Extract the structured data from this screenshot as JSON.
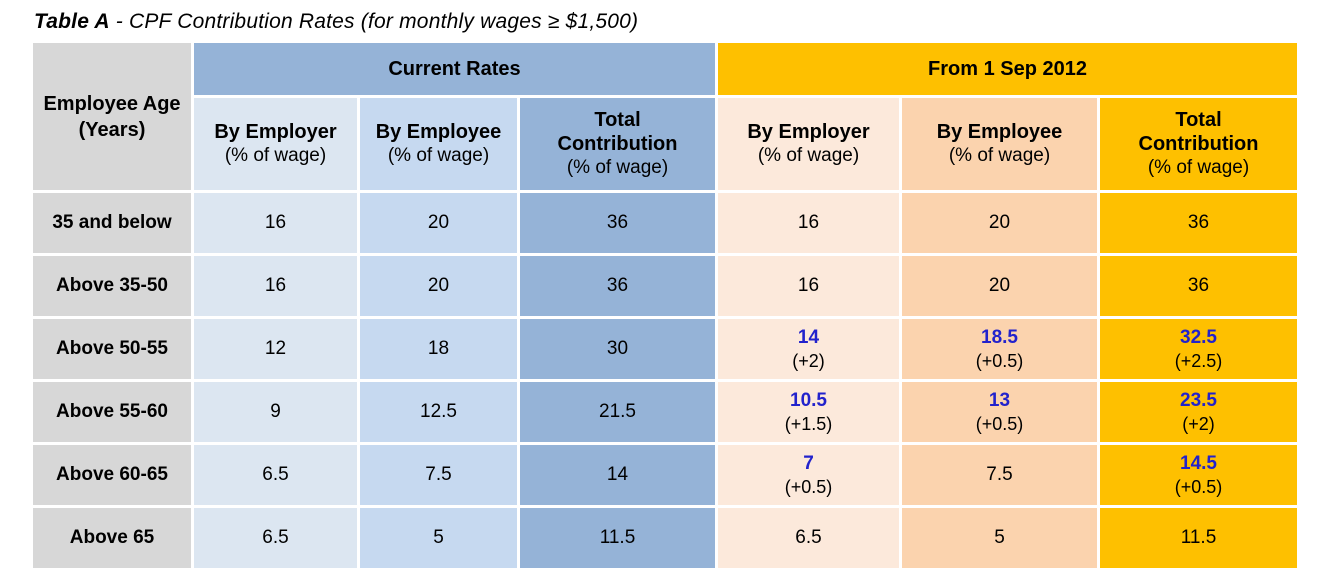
{
  "title": {
    "prefix": "Table A",
    "rest": " - CPF Contribution Rates (for monthly wages ≥ $1,500)"
  },
  "colors": {
    "header_blue": "#95b3d7",
    "employer_blue_light": "#dce6f1",
    "employee_blue": "#c6d9f0",
    "total_blue": "#95b3d7",
    "header_gold": "#fec000",
    "employer_peach_light": "#fce9db",
    "employee_peach": "#fbd3ae",
    "total_gold": "#fec000",
    "age_gray": "#d7d7d7",
    "increase_value_blue": "#2222cc"
  },
  "table": {
    "corner": "Employee Age (Years)",
    "group_current": "Current Rates",
    "group_new": "From 1 Sep 2012",
    "subheader": {
      "employer_title": "By Employer",
      "employee_title": "By Employee",
      "total_title_line1": "Total",
      "total_title_line2": "Contribution",
      "unit": "(% of wage)"
    },
    "rows": [
      {
        "age": "35 and below",
        "cur": [
          "16",
          "20",
          "36"
        ],
        "new": [
          {
            "value": "16",
            "vclass": "val"
          },
          {
            "value": "20",
            "vclass": "val"
          },
          {
            "value": "36",
            "vclass": "val"
          }
        ]
      },
      {
        "age": "Above 35-50",
        "cur": [
          "16",
          "20",
          "36"
        ],
        "new": [
          {
            "value": "16",
            "vclass": "val"
          },
          {
            "value": "20",
            "vclass": "val"
          },
          {
            "value": "36",
            "vclass": "val"
          }
        ]
      },
      {
        "age": "Above 50-55",
        "cur": [
          "12",
          "18",
          "30"
        ],
        "new": [
          {
            "value": "14",
            "change": "(+2)",
            "vclass": "val hl"
          },
          {
            "value": "18.5",
            "change": "(+0.5)",
            "vclass": "val hl"
          },
          {
            "value": "32.5",
            "change": "(+2.5)",
            "vclass": "val hl"
          }
        ]
      },
      {
        "age": "Above 55-60",
        "cur": [
          "9",
          "12.5",
          "21.5"
        ],
        "new": [
          {
            "value": "10.5",
            "change": "(+1.5)",
            "vclass": "val hl"
          },
          {
            "value": "13",
            "change": "(+0.5)",
            "vclass": "val hl"
          },
          {
            "value": "23.5",
            "change": "(+2)",
            "vclass": "val hl"
          }
        ]
      },
      {
        "age": "Above 60-65",
        "cur": [
          "6.5",
          "7.5",
          "14"
        ],
        "new": [
          {
            "value": "7",
            "change": "(+0.5)",
            "vclass": "val hl"
          },
          {
            "value": "7.5",
            "vclass": "val"
          },
          {
            "value": "14.5",
            "change": "(+0.5)",
            "vclass": "val hl"
          }
        ]
      },
      {
        "age": "Above 65",
        "cur": [
          "6.5",
          "5",
          "11.5"
        ],
        "new": [
          {
            "value": "6.5",
            "vclass": "val"
          },
          {
            "value": "5",
            "vclass": "val"
          },
          {
            "value": "11.5",
            "vclass": "val"
          }
        ]
      }
    ]
  }
}
